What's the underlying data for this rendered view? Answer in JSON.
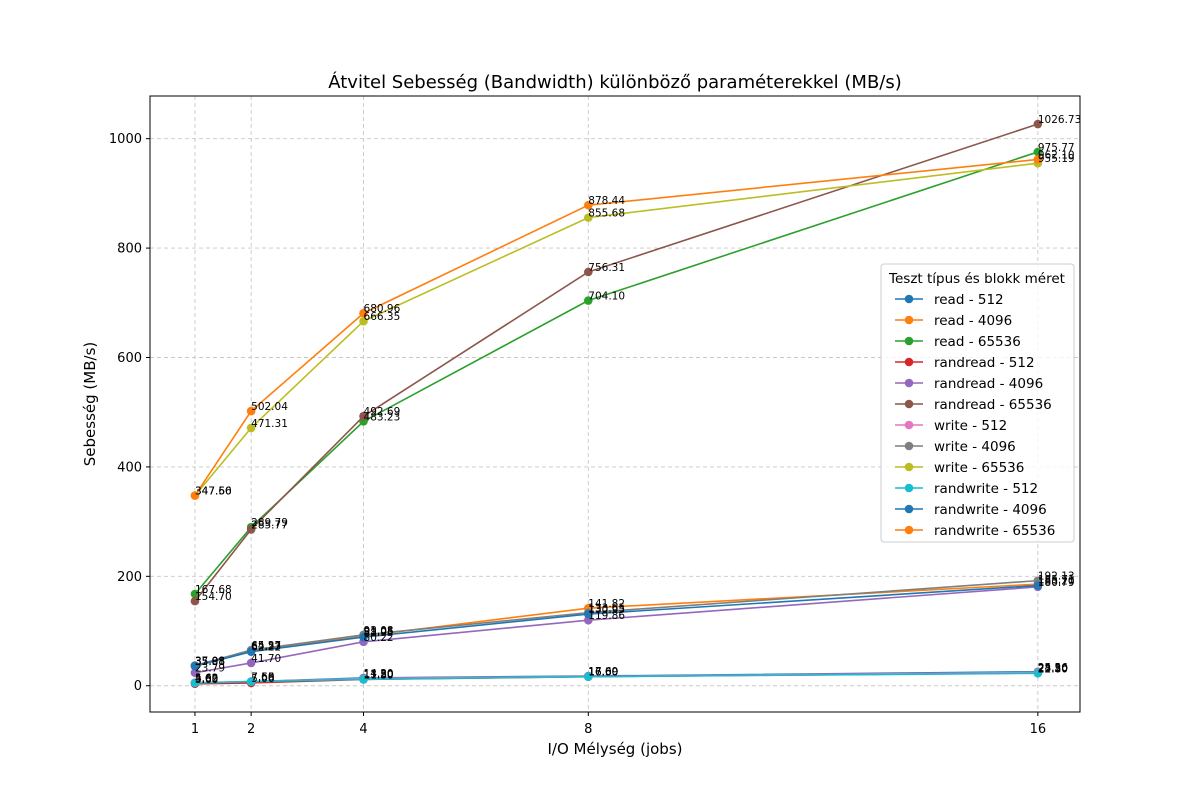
{
  "chart_data": {
    "type": "line",
    "title": "Átvitel Sebesség (Bandwidth) különböző paraméterekkel (MB/s)",
    "xlabel": "I/O Mélység (jobs)",
    "ylabel": "Sebesség (MB/s)",
    "x": [
      1,
      2,
      4,
      8,
      16
    ],
    "x_ticks": [
      "1",
      "2",
      "4",
      "8",
      "16"
    ],
    "xlim": [
      0.2,
      16.75
    ],
    "ylim": [
      -48,
      1078
    ],
    "y_ticks": [
      "0",
      "200",
      "400",
      "600",
      "800",
      "1000"
    ],
    "grid": true,
    "legend_title": "Teszt típus és blokk méret",
    "legend_position": "right",
    "series": [
      {
        "name": "read - 512",
        "color": "#1f77b4",
        "values": [
          4.62,
          7.55,
          14.3,
          17.69,
          25.56
        ],
        "labels": [
          "4.62",
          "7.55",
          "14.30",
          "17.69",
          "25.56"
        ]
      },
      {
        "name": "read - 4096",
        "color": "#ff7f0e",
        "values": [
          35.81,
          64.53,
          91.05,
          141.82,
          185.71
        ],
        "labels": [
          "35.81",
          "64.53",
          "91.05",
          "141.82",
          "185.71"
        ]
      },
      {
        "name": "read - 65536",
        "color": "#2ca02c",
        "values": [
          167.68,
          289.79,
          483.23,
          704.1,
          975.77
        ],
        "labels": [
          "167.68",
          "289.79",
          "483.23",
          "704.10",
          "975.77"
        ]
      },
      {
        "name": "randread - 512",
        "color": "#d62728",
        "values": [
          3.6,
          5.06,
          11.5,
          16.6,
          23.2
        ],
        "labels": [
          "3.60",
          "5.06",
          "11.50",
          "16.60",
          "23.20"
        ]
      },
      {
        "name": "randread - 4096",
        "color": "#9467bd",
        "values": [
          23.79,
          41.7,
          80.22,
          119.86,
          180.79
        ],
        "labels": [
          "23.79",
          "41.70",
          "80.22",
          "119.86",
          "180.79"
        ]
      },
      {
        "name": "randread - 65536",
        "color": "#8c564b",
        "values": [
          154.7,
          285.77,
          492.69,
          756.31,
          1026.73
        ],
        "labels": [
          "154.70",
          "285.77",
          "492.69",
          "756.31",
          "1026.73"
        ]
      },
      {
        "name": "write - 512",
        "color": "#e377c2",
        "values": [
          5.63,
          7.6,
          13.2,
          17.0,
          24.3
        ],
        "labels": [
          "5.63",
          "7.60",
          "13.20",
          "17.00",
          "24.30"
        ]
      },
      {
        "name": "write - 4096",
        "color": "#7f7f7f",
        "values": [
          37.08,
          65.27,
          93.08,
          133.65,
          192.13
        ],
        "labels": [
          "37.08",
          "65.27",
          "93.08",
          "133.65",
          "192.13"
        ]
      },
      {
        "name": "write - 65536",
        "color": "#bcbd22",
        "values": [
          347.56,
          471.31,
          666.35,
          855.68,
          955.19
        ],
        "labels": [
          "347.56",
          "471.31",
          "666.35",
          "855.68",
          "955.19"
        ]
      },
      {
        "name": "randwrite - 512",
        "color": "#17becf",
        "values": [
          5.09,
          7.68,
          11.8,
          16.5,
          22.8
        ],
        "labels": [
          "5.09",
          "7.68",
          "11.80",
          "16.50",
          "22.80"
        ]
      },
      {
        "name": "randwrite - 4096",
        "color": "#1f77b4",
        "values": [
          35.98,
          62.22,
          88.95,
          130.95,
          183.2
        ],
        "labels": [
          "35.98",
          "62.22",
          "88.95",
          "130.95",
          "183.20"
        ]
      },
      {
        "name": "randwrite - 65536",
        "color": "#ff7f0e",
        "values": [
          347.6,
          502.04,
          680.96,
          878.44,
          962.1
        ],
        "labels": [
          "347.60",
          "502.04",
          "680.96",
          "878.44",
          "962.10"
        ]
      }
    ]
  }
}
